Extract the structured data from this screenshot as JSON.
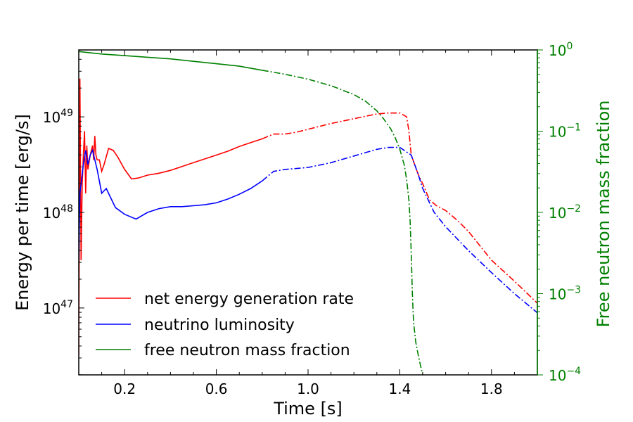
{
  "chart_data": {
    "type": "line",
    "title": "",
    "xlabel": "Time [s]",
    "ylabel": "Energy per time [erg/s]",
    "y2label": "Free neutron mass fraction",
    "xlim": [
      0.0,
      2.0
    ],
    "ylim_log10": [
      46.3,
      49.7
    ],
    "y2lim_log10": [
      -4,
      0
    ],
    "x_ticks": [
      "0.2",
      "0.6",
      "1.0",
      "1.4",
      "1.8"
    ],
    "x_tick_values": [
      0.2,
      0.6,
      1.0,
      1.4,
      1.8
    ],
    "y_ticks": [
      {
        "base": "10",
        "exp": "47",
        "log": 47
      },
      {
        "base": "10",
        "exp": "48",
        "log": 48
      },
      {
        "base": "10",
        "exp": "49",
        "log": 49
      }
    ],
    "y2_ticks": [
      {
        "base": "10",
        "exp": "0",
        "log": 0,
        "plain": "1"
      },
      {
        "base": "10",
        "exp": "−1",
        "log": -1
      },
      {
        "base": "10",
        "exp": "−2",
        "log": -2
      },
      {
        "base": "10",
        "exp": "−3",
        "log": -3
      },
      {
        "base": "10",
        "exp": "−4",
        "log": -4
      }
    ],
    "legend": {
      "placement": "lower-left",
      "entries": [
        {
          "label": "net energy generation rate",
          "color": "#ff0000"
        },
        {
          "label": "neutrino luminosity",
          "color": "#0000ff"
        },
        {
          "label": "free neutron mass fraction",
          "color": "#008000"
        }
      ]
    },
    "solid_until_x": 0.8,
    "series": [
      {
        "name": "net energy generation rate",
        "color": "#ff0000",
        "axis": "left",
        "x": [
          0.0,
          0.005,
          0.01,
          0.015,
          0.02,
          0.025,
          0.03,
          0.035,
          0.04,
          0.05,
          0.06,
          0.065,
          0.07,
          0.075,
          0.08,
          0.09,
          0.1,
          0.11,
          0.13,
          0.15,
          0.17,
          0.2,
          0.23,
          0.26,
          0.3,
          0.35,
          0.4,
          0.45,
          0.5,
          0.55,
          0.6,
          0.65,
          0.7,
          0.75,
          0.8,
          0.85,
          0.9,
          0.95,
          1.0,
          1.1,
          1.2,
          1.3,
          1.35,
          1.4,
          1.43,
          1.44,
          1.45,
          1.48,
          1.5,
          1.53,
          1.56,
          1.6,
          1.65,
          1.7,
          1.75,
          1.8,
          1.9,
          2.0
        ],
        "log_y": [
          46.5,
          49.4,
          47.5,
          48.3,
          48.6,
          48.85,
          48.2,
          48.7,
          48.45,
          48.6,
          48.7,
          48.55,
          48.8,
          48.6,
          48.55,
          48.55,
          48.43,
          48.5,
          48.67,
          48.65,
          48.58,
          48.45,
          48.35,
          48.36,
          48.39,
          48.41,
          48.44,
          48.48,
          48.52,
          48.56,
          48.6,
          48.64,
          48.69,
          48.73,
          48.77,
          48.82,
          48.82,
          48.84,
          48.87,
          48.93,
          48.98,
          49.03,
          49.04,
          49.04,
          49.0,
          48.85,
          48.6,
          48.4,
          48.3,
          48.13,
          48.07,
          48.02,
          47.92,
          47.8,
          47.65,
          47.5,
          47.28,
          47.05
        ]
      },
      {
        "name": "neutrino luminosity",
        "color": "#0000ff",
        "axis": "left",
        "x": [
          0.0,
          0.005,
          0.01,
          0.02,
          0.03,
          0.04,
          0.05,
          0.06,
          0.08,
          0.1,
          0.12,
          0.14,
          0.16,
          0.2,
          0.25,
          0.3,
          0.35,
          0.4,
          0.45,
          0.5,
          0.55,
          0.6,
          0.65,
          0.7,
          0.75,
          0.8,
          0.85,
          0.9,
          1.0,
          1.1,
          1.2,
          1.3,
          1.35,
          1.4,
          1.45,
          1.48,
          1.5,
          1.55,
          1.6,
          1.7,
          1.8,
          1.9,
          2.0
        ],
        "log_y": [
          47.5,
          48.2,
          48.3,
          48.5,
          48.65,
          48.5,
          48.6,
          48.65,
          48.45,
          48.2,
          48.25,
          48.15,
          48.05,
          47.98,
          47.93,
          48.0,
          48.04,
          48.06,
          48.06,
          48.07,
          48.08,
          48.1,
          48.14,
          48.19,
          48.25,
          48.33,
          48.43,
          48.45,
          48.47,
          48.52,
          48.59,
          48.66,
          48.68,
          48.68,
          48.6,
          48.4,
          48.25,
          48.0,
          47.85,
          47.6,
          47.37,
          47.15,
          46.95
        ]
      },
      {
        "name": "free neutron mass fraction",
        "color": "#008000",
        "axis": "right",
        "x": [
          0.0,
          0.1,
          0.2,
          0.3,
          0.4,
          0.5,
          0.6,
          0.7,
          0.8,
          0.9,
          1.0,
          1.1,
          1.2,
          1.25,
          1.3,
          1.33,
          1.36,
          1.38,
          1.4,
          1.42,
          1.43,
          1.44,
          1.445,
          1.45,
          1.455,
          1.46,
          1.47,
          1.48,
          1.49,
          1.5
        ],
        "log_y": [
          -0.02,
          -0.05,
          -0.07,
          -0.09,
          -0.11,
          -0.14,
          -0.17,
          -0.2,
          -0.25,
          -0.3,
          -0.36,
          -0.44,
          -0.55,
          -0.63,
          -0.75,
          -0.85,
          -0.97,
          -1.08,
          -1.22,
          -1.42,
          -1.6,
          -1.85,
          -2.1,
          -2.5,
          -3.0,
          -3.35,
          -3.6,
          -3.75,
          -3.88,
          -4.0
        ]
      }
    ]
  }
}
